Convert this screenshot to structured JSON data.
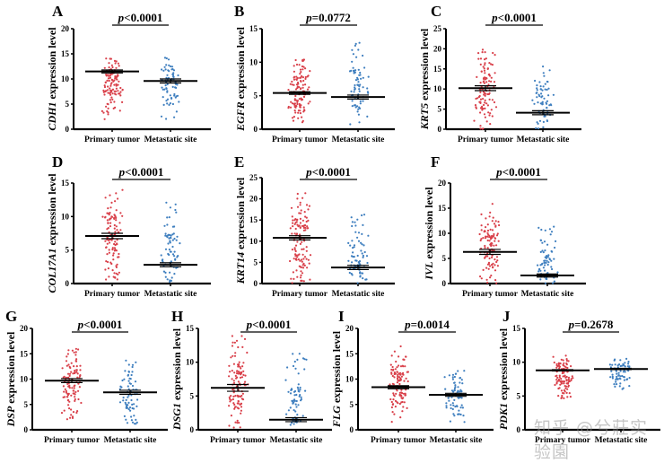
{
  "figure": {
    "watermark": "知乎 @兮莊实验園"
  },
  "chart_data": [
    {
      "type": "scatter",
      "panel": "A",
      "gene": "CDH1",
      "ylabel_suffix": " expression level",
      "p_value": "p<0.0001",
      "categories": [
        "Primary tumor",
        "Metastatic site"
      ],
      "ylim": [
        0,
        20
      ],
      "yticks": [
        0,
        5,
        10,
        15,
        20
      ],
      "means": [
        11.5,
        9.6
      ],
      "sem": [
        0.3,
        0.4
      ],
      "spread": [
        [
          2,
          14.5
        ],
        [
          2,
          14.5
        ]
      ],
      "n": [
        110,
        70
      ],
      "colors": [
        "#d9404a",
        "#3f7fbf"
      ]
    },
    {
      "type": "scatter",
      "panel": "B",
      "gene": "EGFR",
      "ylabel_suffix": " expression level",
      "p_value": "p=0.0772",
      "categories": [
        "Primary tumor",
        "Metastatic site"
      ],
      "ylim": [
        0,
        15
      ],
      "yticks": [
        0,
        5,
        10,
        15
      ],
      "means": [
        5.4,
        4.8
      ],
      "sem": [
        0.2,
        0.3
      ],
      "spread": [
        [
          1,
          10.5
        ],
        [
          0.3,
          13
        ]
      ],
      "n": [
        120,
        70
      ],
      "colors": [
        "#d9404a",
        "#3f7fbf"
      ]
    },
    {
      "type": "scatter",
      "panel": "C",
      "gene": "KRT5",
      "ylabel_suffix": " expression level",
      "p_value": "p<0.0001",
      "categories": [
        "Primary tumor",
        "Metastatic site"
      ],
      "ylim": [
        0,
        25
      ],
      "yticks": [
        0,
        5,
        10,
        15,
        20,
        25
      ],
      "means": [
        10.2,
        4.1
      ],
      "sem": [
        0.6,
        0.5
      ],
      "spread": [
        [
          0,
          20
        ],
        [
          0,
          16.5
        ]
      ],
      "n": [
        110,
        70
      ],
      "colors": [
        "#d9404a",
        "#3f7fbf"
      ]
    },
    {
      "type": "scatter",
      "panel": "D",
      "gene": "COL17A1",
      "ylabel_suffix": " expression level",
      "p_value": "p<0.0001",
      "categories": [
        "Primary tumor",
        "Metastatic site"
      ],
      "ylim": [
        0,
        15
      ],
      "yticks": [
        0,
        5,
        10,
        15
      ],
      "means": [
        7.1,
        2.8
      ],
      "sem": [
        0.4,
        0.3
      ],
      "spread": [
        [
          0.5,
          14.2
        ],
        [
          0,
          12.5
        ]
      ],
      "n": [
        110,
        70
      ],
      "colors": [
        "#d9404a",
        "#3f7fbf"
      ]
    },
    {
      "type": "scatter",
      "panel": "E",
      "gene": "KRT14",
      "ylabel_suffix": " expression level",
      "p_value": "p<0.0001",
      "categories": [
        "Primary tumor",
        "Metastatic site"
      ],
      "ylim": [
        0,
        25
      ],
      "yticks": [
        0,
        5,
        10,
        15,
        20,
        25
      ],
      "means": [
        10.8,
        3.8
      ],
      "sem": [
        0.5,
        0.5
      ],
      "spread": [
        [
          0,
          21.5
        ],
        [
          0,
          16.5
        ]
      ],
      "n": [
        120,
        70
      ],
      "colors": [
        "#d9404a",
        "#3f7fbf"
      ]
    },
    {
      "type": "scatter",
      "panel": "F",
      "gene": "IVL",
      "ylabel_suffix": " expression level",
      "p_value": "p<0.0001",
      "categories": [
        "Primary tumor",
        "Metastatic site"
      ],
      "ylim": [
        0,
        20
      ],
      "yticks": [
        0,
        5,
        10,
        15,
        20
      ],
      "means": [
        6.3,
        1.6
      ],
      "sem": [
        0.5,
        0.3
      ],
      "spread": [
        [
          0,
          16
        ],
        [
          0,
          11.5
        ]
      ],
      "n": [
        110,
        70
      ],
      "colors": [
        "#d9404a",
        "#3f7fbf"
      ]
    },
    {
      "type": "scatter",
      "panel": "G",
      "gene": "DSP",
      "ylabel_suffix": " expression level",
      "p_value": "p<0.0001",
      "categories": [
        "Primary tumor",
        "Metastatic site"
      ],
      "ylim": [
        0,
        20
      ],
      "yticks": [
        0,
        5,
        10,
        15,
        20
      ],
      "means": [
        9.7,
        7.4
      ],
      "sem": [
        0.4,
        0.4
      ],
      "spread": [
        [
          2,
          16
        ],
        [
          0,
          14
        ]
      ],
      "n": [
        110,
        70
      ],
      "colors": [
        "#d9404a",
        "#3f7fbf"
      ]
    },
    {
      "type": "scatter",
      "panel": "H",
      "gene": "DSG1",
      "ylabel_suffix": " expression level",
      "p_value": "p<0.0001",
      "categories": [
        "Primary tumor",
        "Metastatic site"
      ],
      "ylim": [
        0,
        15
      ],
      "yticks": [
        0,
        5,
        10,
        15
      ],
      "means": [
        6.2,
        1.5
      ],
      "sem": [
        0.5,
        0.3
      ],
      "spread": [
        [
          0,
          14
        ],
        [
          0,
          11.3
        ]
      ],
      "n": [
        110,
        70
      ],
      "colors": [
        "#d9404a",
        "#3f7fbf"
      ]
    },
    {
      "type": "scatter",
      "panel": "I",
      "gene": "FLG",
      "ylabel_suffix": " expression level",
      "p_value": "p=0.0014",
      "categories": [
        "Primary tumor",
        "Metastatic site"
      ],
      "ylim": [
        0,
        20
      ],
      "yticks": [
        0,
        5,
        10,
        15,
        20
      ],
      "means": [
        8.4,
        6.9
      ],
      "sem": [
        0.3,
        0.3
      ],
      "spread": [
        [
          1.5,
          17
        ],
        [
          1.5,
          12
        ]
      ],
      "n": [
        110,
        70
      ],
      "colors": [
        "#d9404a",
        "#3f7fbf"
      ]
    },
    {
      "type": "scatter",
      "panel": "J",
      "gene": "PDK1",
      "ylabel_suffix": " expression level",
      "p_value": "p=0.2678",
      "categories": [
        "Primary tumor",
        "Metastatic site"
      ],
      "ylim": [
        0,
        15
      ],
      "yticks": [
        0,
        5,
        10,
        15
      ],
      "means": [
        8.8,
        9.0
      ],
      "sem": [
        0.1,
        0.1
      ],
      "spread": [
        [
          4.5,
          11
        ],
        [
          6,
          10.5
        ]
      ],
      "n": [
        110,
        70
      ],
      "colors": [
        "#d9404a",
        "#3f7fbf"
      ]
    }
  ]
}
